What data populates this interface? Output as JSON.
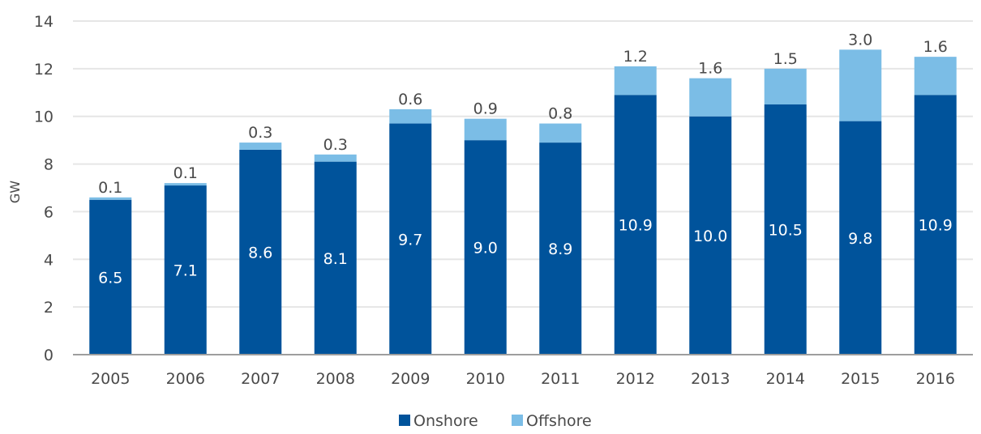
{
  "chart_data": {
    "type": "bar",
    "stacked": true,
    "categories": [
      "2005",
      "2006",
      "2007",
      "2008",
      "2009",
      "2010",
      "2011",
      "2012",
      "2013",
      "2014",
      "2015",
      "2016"
    ],
    "series": [
      {
        "name": "Onshore",
        "color": "#00539b",
        "values": [
          6.5,
          7.1,
          8.6,
          8.1,
          9.7,
          9.0,
          8.9,
          10.9,
          10.0,
          10.5,
          9.8,
          10.9
        ],
        "labels": [
          "6.5",
          "7.1",
          "8.6",
          "8.1",
          "9.7",
          "9.0",
          "8.9",
          "10.9",
          "10.0",
          "10.5",
          "9.8",
          "10.9"
        ]
      },
      {
        "name": "Offshore",
        "color": "#7bbde6",
        "values": [
          0.1,
          0.1,
          0.3,
          0.3,
          0.6,
          0.9,
          0.8,
          1.2,
          1.6,
          1.5,
          3.0,
          1.6
        ],
        "labels": [
          "0.1",
          "0.1",
          "0.3",
          "0.3",
          "0.6",
          "0.9",
          "0.8",
          "1.2",
          "1.6",
          "1.5",
          "3.0",
          "1.6"
        ]
      }
    ],
    "title": "",
    "xlabel": "",
    "ylabel": "GW",
    "ylim": [
      0,
      14
    ],
    "yticks": [
      0,
      2,
      4,
      6,
      8,
      10,
      12,
      14
    ],
    "ytick_labels": [
      "0",
      "2",
      "4",
      "6",
      "8",
      "10",
      "12",
      "14"
    ],
    "grid": true,
    "grid_color": "#e6e6e6",
    "axis_color": "#9e9e9e",
    "legend_position": "bottom-center"
  }
}
